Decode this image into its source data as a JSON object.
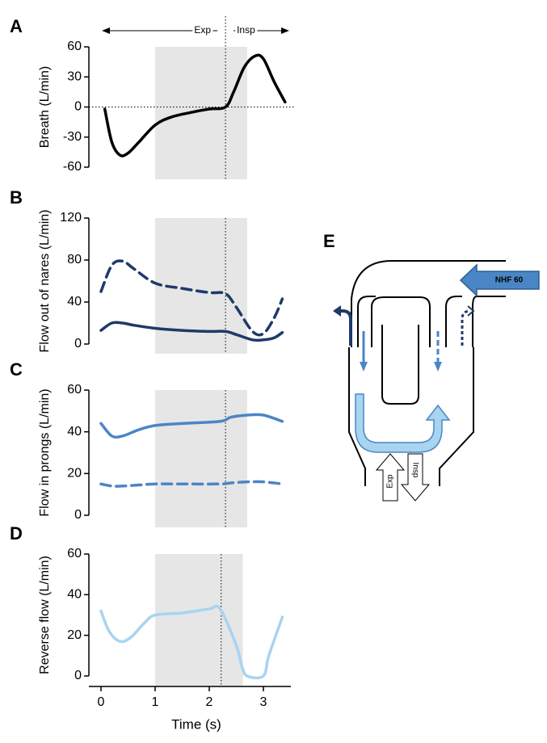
{
  "chart_data": [
    {
      "label": "A",
      "type": "line",
      "ylabel": "Breath (L/min)",
      "xlim": [
        0,
        3.4
      ],
      "ylim": [
        -60,
        60
      ],
      "yticks": [
        60,
        30,
        0,
        -30,
        -60
      ],
      "zero_line": true,
      "shade": [
        1,
        2.7
      ],
      "vline": 2.3,
      "annotations": [
        "Exp",
        "Insp"
      ],
      "x": [
        0.07,
        0.2,
        0.35,
        0.5,
        0.7,
        1.0,
        1.3,
        1.7,
        2.0,
        2.3,
        2.45,
        2.65,
        2.85,
        3.0,
        3.2,
        3.4
      ],
      "series": [
        {
          "color": "#000000",
          "dash": false,
          "values": [
            -2,
            -35,
            -48,
            -46,
            -35,
            -18,
            -10,
            -5,
            -2,
            0,
            15,
            40,
            51,
            48,
            25,
            5
          ]
        }
      ]
    },
    {
      "label": "B",
      "type": "line",
      "ylabel": "Flow out of nares (L/min)",
      "xlim": [
        0,
        3.4
      ],
      "ylim": [
        0,
        120
      ],
      "yticks": [
        0,
        40,
        80,
        120
      ],
      "shade": [
        1,
        2.7
      ],
      "vline": 2.3,
      "x": [
        0,
        0.2,
        0.4,
        0.6,
        1.0,
        1.5,
        2.0,
        2.3,
        2.5,
        2.8,
        3.0,
        3.2,
        3.35
      ],
      "series": [
        {
          "color": "#1f3a68",
          "dash": true,
          "values": [
            50,
            75,
            79,
            72,
            58,
            53,
            49,
            48,
            35,
            12,
            10,
            25,
            43
          ]
        },
        {
          "color": "#1f3a68",
          "dash": false,
          "values": [
            13,
            20,
            20,
            18,
            15,
            13,
            12,
            12,
            9,
            4,
            4,
            6,
            11
          ]
        }
      ]
    },
    {
      "label": "C",
      "type": "line",
      "ylabel": "Flow in prongs (L/min)",
      "xlim": [
        0,
        3.4
      ],
      "ylim": [
        0,
        60
      ],
      "yticks": [
        0,
        20,
        40,
        60
      ],
      "shade": [
        1,
        2.7
      ],
      "vline": 2.3,
      "x": [
        0,
        0.2,
        0.4,
        0.7,
        1.0,
        1.5,
        2.2,
        2.4,
        2.7,
        3.0,
        3.35
      ],
      "series": [
        {
          "color": "#4a86c5",
          "dash": false,
          "values": [
            44,
            38,
            38,
            41,
            43,
            44,
            45,
            47,
            48,
            48,
            45
          ]
        },
        {
          "color": "#4a86c5",
          "dash": true,
          "values": [
            15,
            14,
            14,
            14.5,
            15,
            15,
            15,
            15.5,
            16,
            16,
            15
          ]
        }
      ]
    },
    {
      "label": "D",
      "type": "line",
      "ylabel": "Reverse flow (L/min)",
      "xlabel": "Time (s)",
      "xlim": [
        0,
        3.4
      ],
      "ylim": [
        0,
        60
      ],
      "yticks": [
        0,
        20,
        40,
        60
      ],
      "xticks": [
        0,
        1,
        2,
        3
      ],
      "shade": [
        1,
        2.62
      ],
      "vline": 2.22,
      "x": [
        0,
        0.15,
        0.35,
        0.55,
        0.8,
        1.0,
        1.5,
        2.0,
        2.2,
        2.5,
        2.6,
        2.7,
        3.0,
        3.1,
        3.35
      ],
      "series": [
        {
          "color": "#a8d4f0",
          "dash": false,
          "values": [
            32,
            22,
            17,
            19,
            26,
            30,
            31,
            33,
            33,
            15,
            5,
            0,
            0,
            10,
            29
          ]
        }
      ]
    }
  ],
  "diagram": {
    "label": "E",
    "nhf": "NHF 60",
    "exp": "Exp",
    "insp": "Insp"
  }
}
